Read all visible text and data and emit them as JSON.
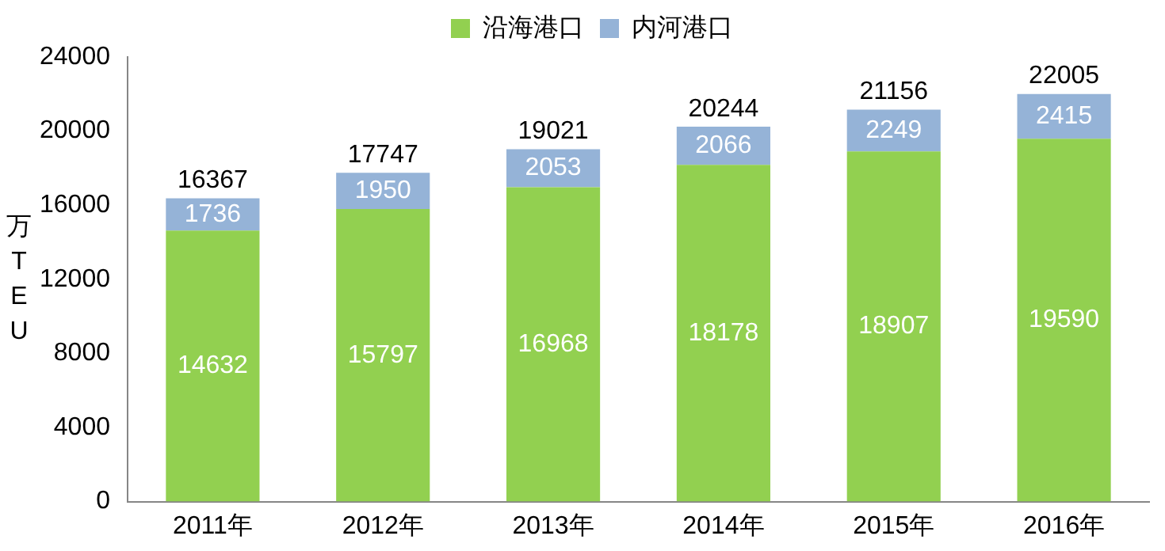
{
  "chart_data": {
    "type": "bar",
    "stacked": true,
    "ylabel": "万TEU",
    "categories": [
      "2011年",
      "2012年",
      "2013年",
      "2014年",
      "2015年",
      "2016年"
    ],
    "series": [
      {
        "name": "沿海港口",
        "color": "#92d050",
        "values": [
          14632,
          15797,
          16968,
          18178,
          18907,
          19590
        ]
      },
      {
        "name": "内河港口",
        "color": "#95b3d7",
        "values": [
          1736,
          1950,
          2053,
          2066,
          2249,
          2415
        ]
      }
    ],
    "totals": [
      "16367",
      "17747",
      "19021",
      "20244",
      "21156",
      "22005"
    ],
    "data_labels": true,
    "ylim": [
      0,
      24000
    ],
    "yticks": [
      0,
      4000,
      8000,
      12000,
      16000,
      20000,
      24000
    ],
    "grid": false,
    "legend": "top"
  }
}
